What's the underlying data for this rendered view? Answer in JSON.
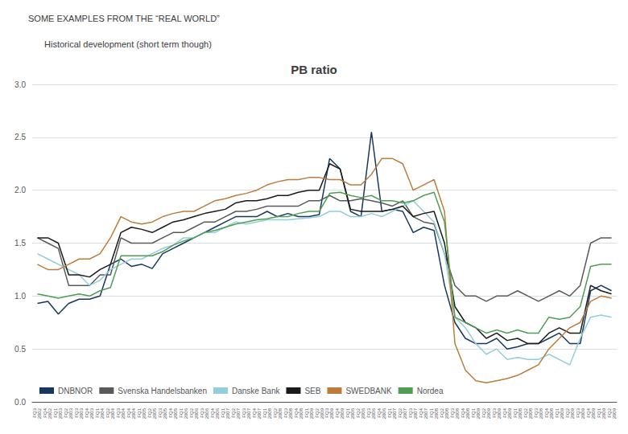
{
  "chart_data": {
    "type": "line",
    "header": "SOME EXAMPLES FROM THE “REAL WORLD”",
    "subtitle": "Historical development (short term though)",
    "title": "PB ratio",
    "categories": [
      "FQ3\n2002",
      "FQ4\n2002",
      "FQ1\n2003",
      "FQ2\n2003",
      "FQ3\n2003",
      "FQ4\n2003",
      "FQ1\n2004",
      "FQ2\n2004",
      "FQ3\n2004",
      "FQ4\n2004",
      "FQ1\n2005",
      "FQ2\n2005",
      "FQ3\n2005",
      "FQ4\n2005",
      "FQ1\n2006",
      "FQ2\n2006",
      "FQ3\n2006",
      "FQ4\n2006",
      "FQ1\n2007",
      "FQ2\n2007",
      "FQ3\n2007",
      "FQ4\n2007",
      "FQ1\n2008",
      "FQ2\n2008",
      "FQ3\n2008",
      "FQ4\n2008",
      "FQ1\n2009",
      "FQ2\n2009",
      "FQ3\n2009",
      "FQ4\n2009",
      "FQ1\n2006",
      "FQ2\n2006",
      "FQ3\n2006",
      "FQ4\n2006",
      "FQ1\n2007",
      "FQ2\n2007",
      "FQ3\n2007",
      "FQ4\n2007",
      "FQ1\n2008",
      "FQ2\n2008",
      "FQ3\n2008",
      "FQ4\n2008",
      "FQ1\n2009",
      "FQ2\n2009",
      "FQ3\n2009",
      "FQ4\n2009",
      "FQ1\n2008",
      "FQ2\n2008",
      "FQ3\n2008",
      "FQ4\n2008",
      "FQ1\n2009",
      "FQ2\n2009",
      "FQ3\n2009",
      "FQ4\n2009",
      "FQ1\n2009",
      "FQ2\n2009"
    ],
    "series": [
      {
        "name": "DNBNOR",
        "color": "#17375E",
        "values": [
          0.93,
          0.95,
          0.83,
          0.93,
          0.97,
          0.97,
          1.0,
          1.3,
          1.35,
          1.28,
          1.3,
          1.26,
          1.4,
          1.45,
          1.5,
          1.55,
          1.6,
          1.65,
          1.7,
          1.75,
          1.75,
          1.75,
          1.8,
          1.75,
          1.78,
          1.75,
          1.75,
          1.77,
          2.3,
          2.2,
          1.8,
          1.75,
          2.55,
          1.8,
          1.82,
          1.8,
          1.6,
          1.65,
          1.62,
          1.1,
          0.75,
          0.6,
          0.55,
          0.55,
          0.6,
          0.5,
          0.52,
          0.55,
          0.55,
          0.6,
          0.65,
          0.55,
          0.55,
          1.05,
          1.1,
          1.05
        ]
      },
      {
        "name": "Svenska Handelsbanken",
        "color": "#595959",
        "values": [
          1.55,
          1.5,
          1.45,
          1.1,
          1.1,
          1.1,
          1.2,
          1.2,
          1.55,
          1.5,
          1.5,
          1.5,
          1.55,
          1.6,
          1.6,
          1.65,
          1.7,
          1.7,
          1.75,
          1.8,
          1.8,
          1.82,
          1.85,
          1.85,
          1.85,
          1.85,
          1.9,
          1.9,
          1.95,
          1.9,
          1.9,
          1.92,
          1.9,
          1.88,
          1.85,
          1.9,
          1.75,
          1.7,
          1.68,
          1.4,
          1.1,
          1.0,
          1.0,
          0.95,
          1.0,
          1.0,
          1.05,
          1.0,
          0.95,
          1.0,
          1.05,
          1.0,
          1.1,
          1.5,
          1.55,
          1.55
        ]
      },
      {
        "name": "Danske Bank",
        "color": "#92CDDC",
        "values": [
          1.4,
          1.35,
          1.3,
          1.25,
          1.2,
          1.1,
          1.15,
          1.25,
          1.3,
          1.35,
          1.35,
          1.4,
          1.45,
          1.48,
          1.55,
          1.55,
          1.6,
          1.6,
          1.65,
          1.7,
          1.68,
          1.7,
          1.72,
          1.72,
          1.72,
          1.73,
          1.74,
          1.75,
          1.8,
          1.8,
          1.75,
          1.75,
          1.78,
          1.75,
          1.8,
          1.85,
          1.9,
          1.8,
          1.7,
          1.4,
          0.8,
          0.7,
          0.55,
          0.45,
          0.5,
          0.4,
          0.42,
          0.4,
          0.4,
          0.45,
          0.4,
          0.35,
          0.6,
          0.8,
          0.82,
          0.8
        ]
      },
      {
        "name": "SEB",
        "color": "#1A1A1A",
        "values": [
          1.55,
          1.55,
          1.5,
          1.2,
          1.2,
          1.18,
          1.25,
          1.3,
          1.6,
          1.65,
          1.63,
          1.6,
          1.65,
          1.7,
          1.72,
          1.75,
          1.78,
          1.8,
          1.82,
          1.88,
          1.9,
          1.9,
          1.92,
          1.95,
          1.95,
          1.98,
          2.0,
          2.0,
          2.25,
          2.2,
          1.82,
          1.8,
          1.8,
          1.8,
          1.82,
          1.85,
          1.75,
          1.78,
          1.8,
          1.5,
          0.9,
          0.75,
          0.7,
          0.6,
          0.65,
          0.58,
          0.6,
          0.55,
          0.55,
          0.65,
          0.7,
          0.65,
          0.65,
          1.1,
          1.05,
          1.02
        ]
      },
      {
        "name": "SWEDBANK",
        "color": "#BE7B3C",
        "values": [
          1.3,
          1.25,
          1.25,
          1.3,
          1.35,
          1.35,
          1.4,
          1.55,
          1.75,
          1.7,
          1.68,
          1.7,
          1.75,
          1.78,
          1.8,
          1.8,
          1.85,
          1.9,
          1.92,
          1.95,
          1.97,
          2.0,
          2.05,
          2.08,
          2.1,
          2.1,
          2.12,
          2.12,
          2.1,
          2.1,
          2.05,
          2.05,
          2.15,
          2.3,
          2.3,
          2.25,
          2.0,
          2.05,
          2.1,
          1.8,
          0.55,
          0.3,
          0.2,
          0.18,
          0.2,
          0.22,
          0.25,
          0.3,
          0.35,
          0.5,
          0.6,
          0.7,
          0.75,
          0.95,
          1.0,
          0.98
        ]
      },
      {
        "name": "Nordea",
        "color": "#4E9F52",
        "values": [
          1.02,
          1.0,
          0.98,
          1.0,
          1.02,
          1.0,
          1.05,
          1.08,
          1.38,
          1.38,
          1.38,
          1.38,
          1.42,
          1.48,
          1.52,
          1.55,
          1.6,
          1.62,
          1.65,
          1.68,
          1.7,
          1.72,
          1.73,
          1.75,
          1.75,
          1.78,
          1.8,
          1.8,
          1.97,
          1.98,
          1.95,
          1.93,
          1.95,
          1.9,
          1.9,
          1.88,
          1.9,
          1.95,
          1.98,
          1.7,
          0.8,
          0.75,
          0.7,
          0.65,
          0.68,
          0.65,
          0.68,
          0.65,
          0.65,
          0.8,
          0.78,
          0.8,
          0.9,
          1.28,
          1.3,
          1.3
        ]
      }
    ],
    "ylim": [
      0,
      3.0
    ],
    "yticks": [
      {
        "value": 0,
        "label": "0.0"
      },
      0.5,
      {
        "value": 1.0,
        "label": "1.0"
      },
      1.5,
      {
        "value": 2.0,
        "label": "2.0"
      },
      2.5,
      {
        "value": 3.0,
        "label": "3.0"
      }
    ],
    "grid": true,
    "legend": "lower left"
  }
}
